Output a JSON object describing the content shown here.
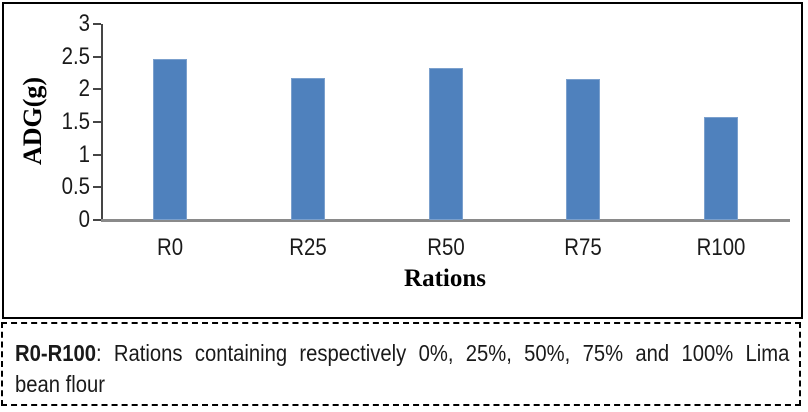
{
  "chart_data": {
    "type": "bar",
    "title": "",
    "categories": [
      "R0",
      "R25",
      "R50",
      "R75",
      "R100"
    ],
    "values": [
      2.47,
      2.18,
      2.33,
      2.16,
      1.58
    ],
    "xlabel": "Rations",
    "ylabel": "ADG(g)",
    "ylim": [
      0,
      3
    ],
    "yticks": [
      0,
      0.5,
      1,
      1.5,
      2,
      2.5,
      3
    ],
    "grid": false,
    "legend": false,
    "bar_color": "#4f81bd",
    "axis_color": "#454545",
    "baseline_color": "#8a8a8a"
  },
  "caption": {
    "term": "R0-R100",
    "line1_rest": ": Rations containing respectively 0%, 25%, 50%, 75% and 100% Lima",
    "line2": "bean flour"
  }
}
